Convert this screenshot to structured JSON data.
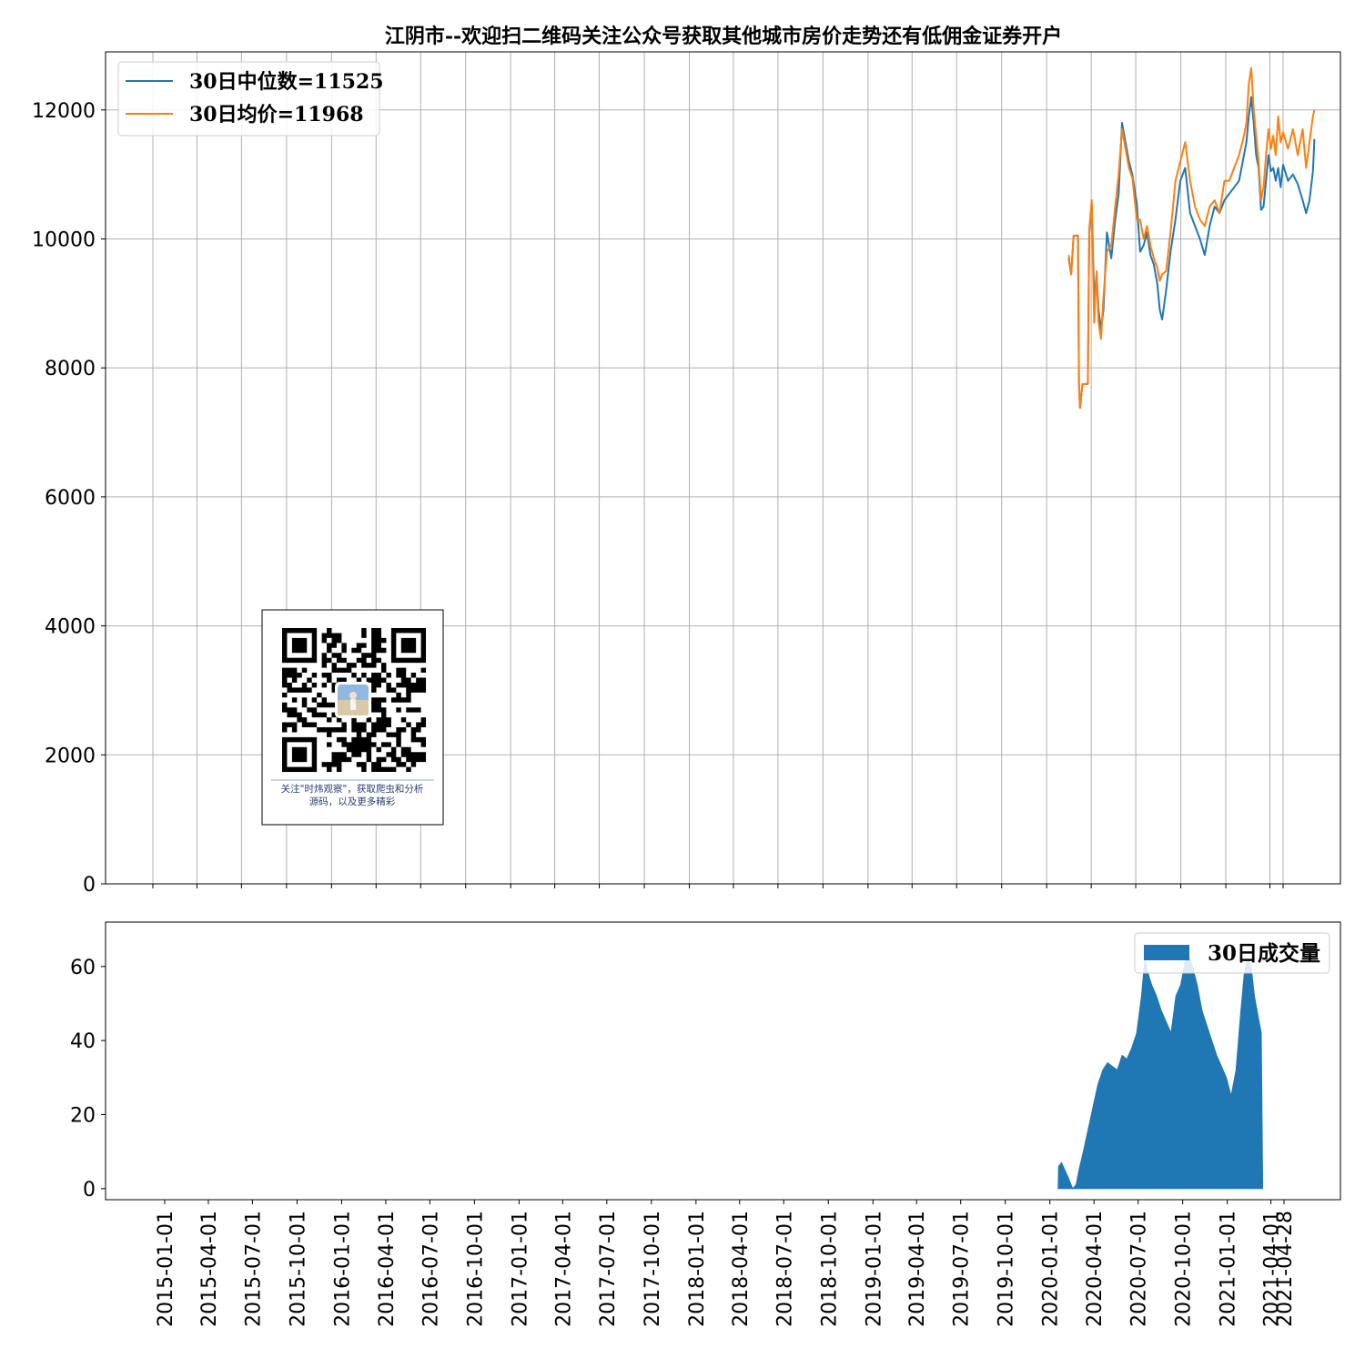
{
  "chart_data": [
    {
      "type": "line",
      "title": "江阴市--欢迎扫二维码关注公众号获取其他城市房价走势还有低佣金证券开户",
      "ylim": [
        0,
        12900
      ],
      "yticks": [
        "0",
        "2000",
        "4000",
        "6000",
        "8000",
        "10000",
        "12000"
      ],
      "ytick_values": [
        0,
        2000,
        4000,
        6000,
        8000,
        10000,
        12000
      ],
      "grid": true,
      "legend_position": "top-left",
      "series": [
        {
          "name": "30日中位数=11525",
          "color": "#1f77b4",
          "points": [
            [
              "2020-02-15",
              9700
            ],
            [
              "2020-02-20",
              9450
            ],
            [
              "2020-02-25",
              10050
            ],
            [
              "2020-03-05",
              10050
            ],
            [
              "2020-03-07",
              7750
            ],
            [
              "2020-03-09",
              7380
            ],
            [
              "2020-03-14",
              7750
            ],
            [
              "2020-03-25",
              7750
            ],
            [
              "2020-03-28",
              10100
            ],
            [
              "2020-04-02",
              10550
            ],
            [
              "2020-04-07",
              9100
            ],
            [
              "2020-04-12",
              9450
            ],
            [
              "2020-04-16",
              8900
            ],
            [
              "2020-04-21",
              8600
            ],
            [
              "2020-04-26",
              8900
            ],
            [
              "2020-05-03",
              10100
            ],
            [
              "2020-05-12",
              9700
            ],
            [
              "2020-05-20",
              10300
            ],
            [
              "2020-05-27",
              10700
            ],
            [
              "2020-06-03",
              11800
            ],
            [
              "2020-06-10",
              11500
            ],
            [
              "2020-06-17",
              11200
            ],
            [
              "2020-06-24",
              11000
            ],
            [
              "2020-07-03",
              10550
            ],
            [
              "2020-07-10",
              9800
            ],
            [
              "2020-07-17",
              9900
            ],
            [
              "2020-07-24",
              10100
            ],
            [
              "2020-07-31",
              9750
            ],
            [
              "2020-08-07",
              9600
            ],
            [
              "2020-08-14",
              9300
            ],
            [
              "2020-08-19",
              8900
            ],
            [
              "2020-08-24",
              8750
            ],
            [
              "2020-09-01",
              9200
            ],
            [
              "2020-09-10",
              9800
            ],
            [
              "2020-09-20",
              10300
            ],
            [
              "2020-09-30",
              10900
            ],
            [
              "2020-10-10",
              11100
            ],
            [
              "2020-10-20",
              10400
            ],
            [
              "2020-10-30",
              10200
            ],
            [
              "2020-11-09",
              10000
            ],
            [
              "2020-11-19",
              9750
            ],
            [
              "2020-11-29",
              10200
            ],
            [
              "2020-12-09",
              10500
            ],
            [
              "2020-12-19",
              10400
            ],
            [
              "2020-12-29",
              10600
            ],
            [
              "2021-01-08",
              10700
            ],
            [
              "2021-01-18",
              10800
            ],
            [
              "2021-01-28",
              10900
            ],
            [
              "2021-02-07",
              11300
            ],
            [
              "2021-02-12",
              11500
            ],
            [
              "2021-02-17",
              11900
            ],
            [
              "2021-02-22",
              12200
            ],
            [
              "2021-02-27",
              11800
            ],
            [
              "2021-03-04",
              11300
            ],
            [
              "2021-03-09",
              11100
            ],
            [
              "2021-03-14",
              10450
            ],
            [
              "2021-03-19",
              10500
            ],
            [
              "2021-03-24",
              10900
            ],
            [
              "2021-03-29",
              11300
            ],
            [
              "2021-04-03",
              11050
            ],
            [
              "2021-04-08",
              11100
            ],
            [
              "2021-04-13",
              10900
            ],
            [
              "2021-04-18",
              11100
            ],
            [
              "2021-04-23",
              10800
            ],
            [
              "2021-04-28",
              11150
            ],
            [
              "2021-05-08",
              10900
            ],
            [
              "2021-05-18",
              11000
            ],
            [
              "2021-05-28",
              10850
            ],
            [
              "2021-06-07",
              10600
            ],
            [
              "2021-06-14",
              10400
            ],
            [
              "2021-06-21",
              10600
            ],
            [
              "2021-06-28",
              11050
            ],
            [
              "2021-07-01",
              11550
            ]
          ]
        },
        {
          "name": "30日均价=11968",
          "color": "#ff7f0e",
          "points": [
            [
              "2020-02-15",
              9750
            ],
            [
              "2020-02-20",
              9450
            ],
            [
              "2020-02-25",
              10050
            ],
            [
              "2020-03-05",
              10050
            ],
            [
              "2020-03-07",
              7750
            ],
            [
              "2020-03-09",
              7380
            ],
            [
              "2020-03-14",
              7750
            ],
            [
              "2020-03-25",
              7750
            ],
            [
              "2020-03-28",
              10150
            ],
            [
              "2020-04-02",
              10600
            ],
            [
              "2020-04-07",
              8700
            ],
            [
              "2020-04-12",
              9500
            ],
            [
              "2020-04-16",
              8700
            ],
            [
              "2020-04-21",
              8450
            ],
            [
              "2020-04-26",
              9100
            ],
            [
              "2020-05-03",
              9800
            ],
            [
              "2020-05-12",
              9900
            ],
            [
              "2020-05-20",
              10500
            ],
            [
              "2020-05-27",
              11000
            ],
            [
              "2020-06-03",
              11700
            ],
            [
              "2020-06-10",
              11400
            ],
            [
              "2020-06-17",
              11100
            ],
            [
              "2020-06-24",
              10950
            ],
            [
              "2020-07-03",
              10300
            ],
            [
              "2020-07-10",
              10300
            ],
            [
              "2020-07-17",
              10000
            ],
            [
              "2020-07-24",
              10200
            ],
            [
              "2020-07-31",
              9900
            ],
            [
              "2020-08-07",
              9700
            ],
            [
              "2020-08-14",
              9550
            ],
            [
              "2020-08-19",
              9350
            ],
            [
              "2020-08-24",
              9450
            ],
            [
              "2020-09-01",
              9500
            ],
            [
              "2020-09-10",
              10100
            ],
            [
              "2020-09-20",
              10900
            ],
            [
              "2020-09-30",
              11200
            ],
            [
              "2020-10-10",
              11500
            ],
            [
              "2020-10-20",
              10900
            ],
            [
              "2020-10-30",
              10500
            ],
            [
              "2020-11-09",
              10300
            ],
            [
              "2020-11-19",
              10200
            ],
            [
              "2020-11-29",
              10500
            ],
            [
              "2020-12-09",
              10600
            ],
            [
              "2020-12-19",
              10400
            ],
            [
              "2020-12-29",
              10900
            ],
            [
              "2021-01-08",
              10900
            ],
            [
              "2021-01-18",
              11100
            ],
            [
              "2021-01-28",
              11300
            ],
            [
              "2021-02-07",
              11600
            ],
            [
              "2021-02-12",
              11800
            ],
            [
              "2021-02-17",
              12400
            ],
            [
              "2021-02-22",
              12650
            ],
            [
              "2021-02-27",
              12000
            ],
            [
              "2021-03-04",
              11600
            ],
            [
              "2021-03-09",
              11200
            ],
            [
              "2021-03-14",
              10600
            ],
            [
              "2021-03-19",
              10800
            ],
            [
              "2021-03-24",
              11300
            ],
            [
              "2021-03-29",
              11700
            ],
            [
              "2021-04-03",
              11400
            ],
            [
              "2021-04-08",
              11600
            ],
            [
              "2021-04-13",
              11300
            ],
            [
              "2021-04-18",
              11900
            ],
            [
              "2021-04-23",
              11500
            ],
            [
              "2021-04-28",
              11650
            ],
            [
              "2021-05-08",
              11400
            ],
            [
              "2021-05-18",
              11700
            ],
            [
              "2021-05-28",
              11300
            ],
            [
              "2021-06-07",
              11700
            ],
            [
              "2021-06-14",
              11100
            ],
            [
              "2021-06-21",
              11500
            ],
            [
              "2021-06-28",
              11900
            ],
            [
              "2021-07-01",
              12000
            ]
          ]
        }
      ]
    },
    {
      "type": "area",
      "ylim": [
        -3,
        72
      ],
      "yticks": [
        "0",
        "20",
        "40",
        "60"
      ],
      "ytick_values": [
        0,
        20,
        40,
        60
      ],
      "grid": false,
      "legend_position": "top-right",
      "xticks": [
        "2015-01-01",
        "2015-04-01",
        "2015-07-01",
        "2015-10-01",
        "2016-01-01",
        "2016-04-01",
        "2016-07-01",
        "2016-10-01",
        "2017-01-01",
        "2017-04-01",
        "2017-07-01",
        "2017-10-01",
        "2018-01-01",
        "2018-04-01",
        "2018-07-01",
        "2018-10-01",
        "2019-01-01",
        "2019-04-01",
        "2019-07-01",
        "2019-10-01",
        "2020-01-01",
        "2020-04-01",
        "2020-07-01",
        "2020-10-01",
        "2021-01-01",
        "2021-04-01",
        "2021-04-28"
      ],
      "series": [
        {
          "name": "30日成交量",
          "color": "#1f77b4",
          "points": [
            [
              "2020-01-18",
              0
            ],
            [
              "2020-01-19",
              6
            ],
            [
              "2020-01-25",
              7
            ],
            [
              "2020-02-01",
              5
            ],
            [
              "2020-02-08",
              3
            ],
            [
              "2020-02-14",
              1
            ],
            [
              "2020-02-17",
              0
            ],
            [
              "2020-02-24",
              1
            ],
            [
              "2020-03-01",
              5
            ],
            [
              "2020-03-10",
              10
            ],
            [
              "2020-03-20",
              16
            ],
            [
              "2020-03-30",
              22
            ],
            [
              "2020-04-09",
              28
            ],
            [
              "2020-04-19",
              32
            ],
            [
              "2020-04-29",
              34
            ],
            [
              "2020-05-09",
              33
            ],
            [
              "2020-05-19",
              32
            ],
            [
              "2020-05-29",
              36
            ],
            [
              "2020-06-08",
              35
            ],
            [
              "2020-06-18",
              38
            ],
            [
              "2020-06-28",
              42
            ],
            [
              "2020-07-08",
              52
            ],
            [
              "2020-07-15",
              62
            ],
            [
              "2020-07-22",
              58
            ],
            [
              "2020-07-29",
              55
            ],
            [
              "2020-08-08",
              52
            ],
            [
              "2020-08-18",
              48
            ],
            [
              "2020-08-28",
              45
            ],
            [
              "2020-09-07",
              42
            ],
            [
              "2020-09-17",
              52
            ],
            [
              "2020-09-27",
              55
            ],
            [
              "2020-10-07",
              62
            ],
            [
              "2020-10-14",
              63
            ],
            [
              "2020-10-21",
              60
            ],
            [
              "2020-10-31",
              55
            ],
            [
              "2020-11-10",
              48
            ],
            [
              "2020-11-20",
              44
            ],
            [
              "2020-11-30",
              40
            ],
            [
              "2020-12-10",
              36
            ],
            [
              "2020-12-20",
              33
            ],
            [
              "2020-12-30",
              30
            ],
            [
              "2021-01-09",
              25
            ],
            [
              "2021-01-19",
              32
            ],
            [
              "2021-01-29",
              48
            ],
            [
              "2021-02-05",
              58
            ],
            [
              "2021-02-12",
              62
            ],
            [
              "2021-02-19",
              60
            ],
            [
              "2021-02-26",
              52
            ],
            [
              "2021-03-05",
              47
            ],
            [
              "2021-03-12",
              42
            ],
            [
              "2021-03-15",
              0
            ]
          ]
        }
      ]
    }
  ],
  "qr_card": {
    "caption_line1": "关注\"时炜观察\"，获取爬虫和分析",
    "caption_line2": "源码，以及更多精彩"
  }
}
